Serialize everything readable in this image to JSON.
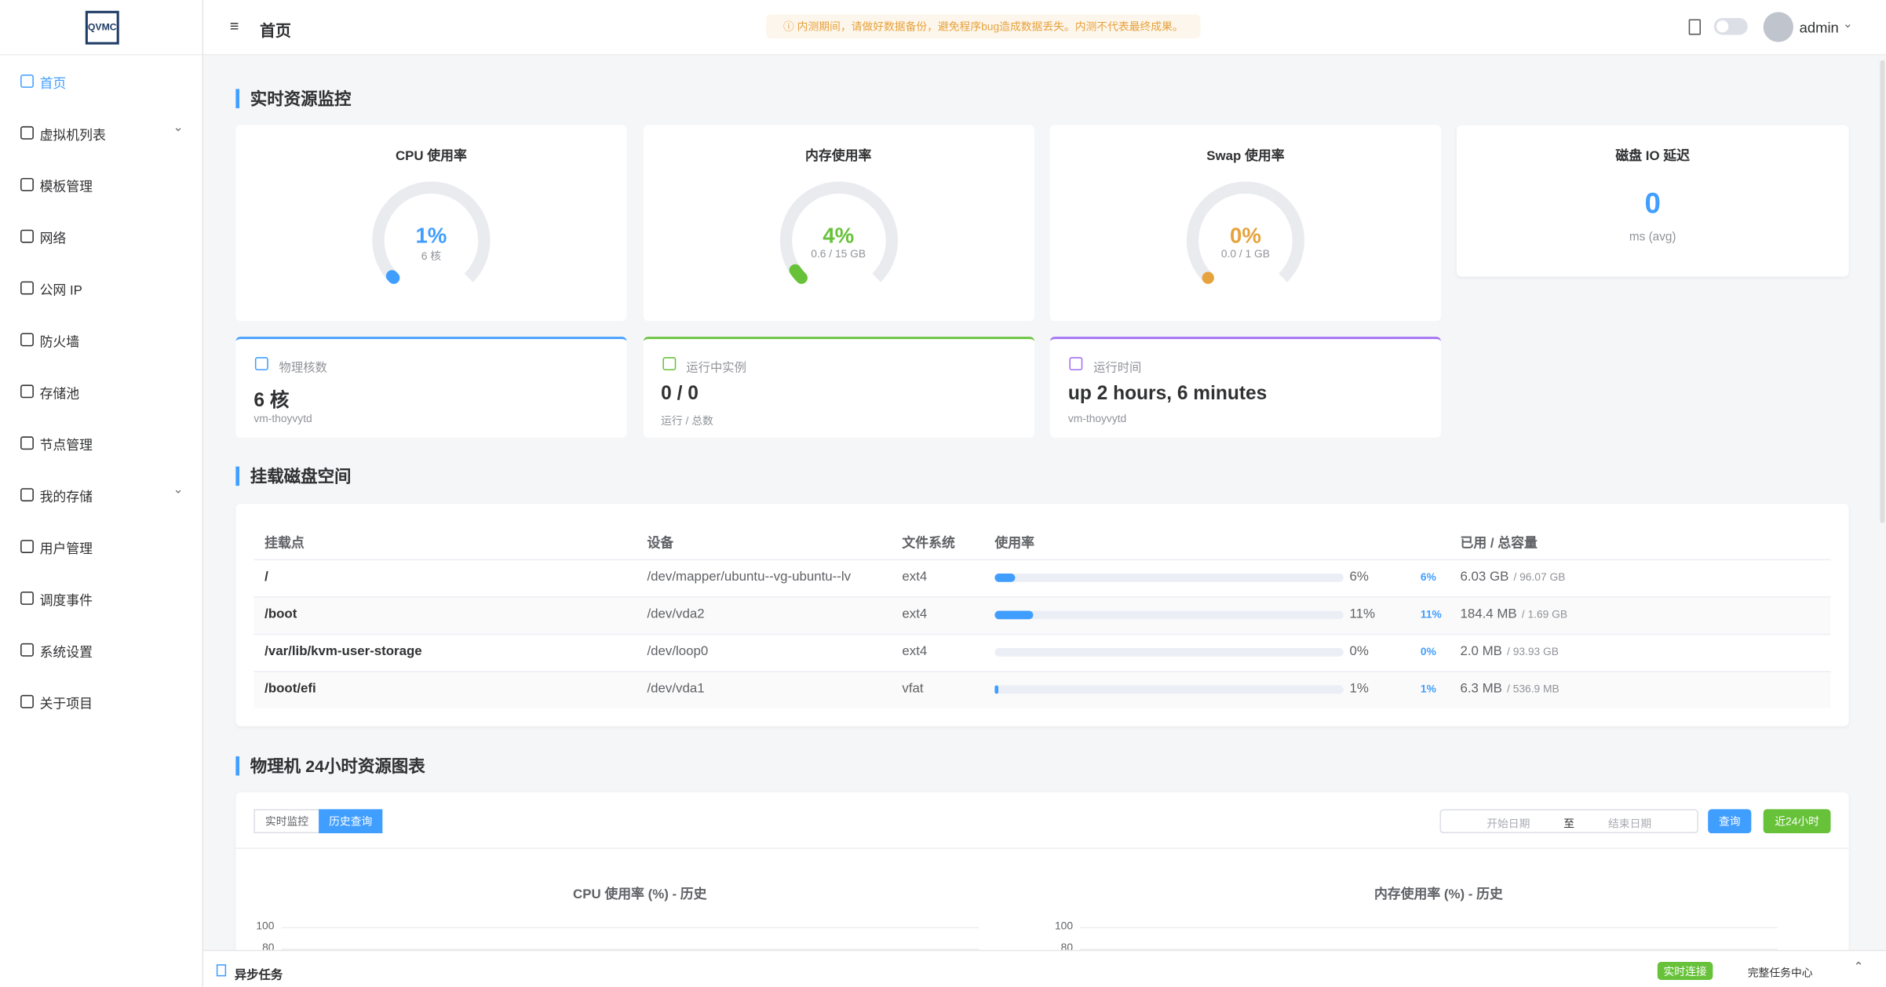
{
  "sidebar": {
    "logo": "QVMC",
    "menu": [
      {
        "label": "首页"
      },
      {
        "label": "虚拟机列表",
        "submenu": true
      },
      {
        "label": "模板管理"
      },
      {
        "label": "网络"
      },
      {
        "label": "公网 IP"
      },
      {
        "label": "防火墙"
      },
      {
        "label": "存储池"
      },
      {
        "label": "节点管理"
      },
      {
        "label": "我的存储",
        "submenu": true
      },
      {
        "label": "用户管理"
      },
      {
        "label": "调度事件"
      },
      {
        "label": "系统设置"
      },
      {
        "label": "关于项目"
      }
    ]
  },
  "header": {
    "title": "首页",
    "notice": "内测期间，请做好数据备份，避免程序bug造成数据丢失。内测不代表最终成果。",
    "user": "admin"
  },
  "realtime": {
    "title": "实时资源监控",
    "gauges": [
      {
        "title": "CPU 使用率",
        "value": 1,
        "value_label": "1%",
        "sub": "6 核",
        "color": "#409eff"
      },
      {
        "title": "内存使用率",
        "value": 4,
        "value_label": "4%",
        "sub": "0.6 / 15 GB",
        "color": "#67c23a"
      },
      {
        "title": "Swap 使用率",
        "value": 0,
        "value_label": "0%",
        "sub": "0.0 / 1 GB",
        "color": "#e6a23c"
      }
    ],
    "disk_io": {
      "title": "磁盘 IO 延迟",
      "value": "0",
      "unit": "ms (avg)"
    },
    "stats": [
      {
        "label": "物理核数",
        "value": "6 核",
        "sub": "vm-thoyvytd",
        "color": "#409eff"
      },
      {
        "label": "运行中实例",
        "value": "0 / 0",
        "sub": "运行 / 总数",
        "color": "#67c23a"
      },
      {
        "label": "运行时间",
        "value": "up 2 hours, 6 minutes",
        "sub": "vm-thoyvytd",
        "color": "#a26ef4"
      }
    ]
  },
  "disks": {
    "title": "挂载磁盘空间",
    "columns": [
      "挂载点",
      "设备",
      "文件系统",
      "使用率",
      "已用 / 总容量"
    ],
    "rows": [
      {
        "mount": "/",
        "device": "/dev/mapper/ubuntu--vg-ubuntu--lv",
        "fs": "ext4",
        "usage": 6,
        "usage_label": "6%",
        "used": "6.03 GB",
        "total": "/ 96.07 GB"
      },
      {
        "mount": "/boot",
        "device": "/dev/vda2",
        "fs": "ext4",
        "usage": 11,
        "usage_label": "11%",
        "used": "184.4 MB",
        "total": "/ 1.69 GB"
      },
      {
        "mount": "/var/lib/kvm-user-storage",
        "device": "/dev/loop0",
        "fs": "ext4",
        "usage": 0,
        "usage_label": "0%",
        "used": "2.0 MB",
        "total": "/ 93.93 GB"
      },
      {
        "mount": "/boot/efi",
        "device": "/dev/vda1",
        "fs": "vfat",
        "usage": 1,
        "usage_label": "1%",
        "used": "6.3 MB",
        "total": "/ 536.9 MB"
      }
    ]
  },
  "history": {
    "title": "物理机 24小时资源图表",
    "tabs": [
      "实时监控",
      "历史查询"
    ],
    "start": "开始日期",
    "separator": "至",
    "end": "结束日期",
    "query": "查询",
    "last24": "近24小时",
    "charts": [
      {
        "title": "CPU 使用率 (%) - 历史",
        "ylim": [
          0,
          100
        ],
        "yticks": [
          100,
          80
        ]
      },
      {
        "title": "内存使用率 (%) - 历史",
        "ylim": [
          0,
          100
        ],
        "yticks": [
          100,
          80
        ]
      }
    ]
  },
  "footer": {
    "title": "异步任务",
    "status": "实时连接",
    "link": "完整任务中心"
  }
}
